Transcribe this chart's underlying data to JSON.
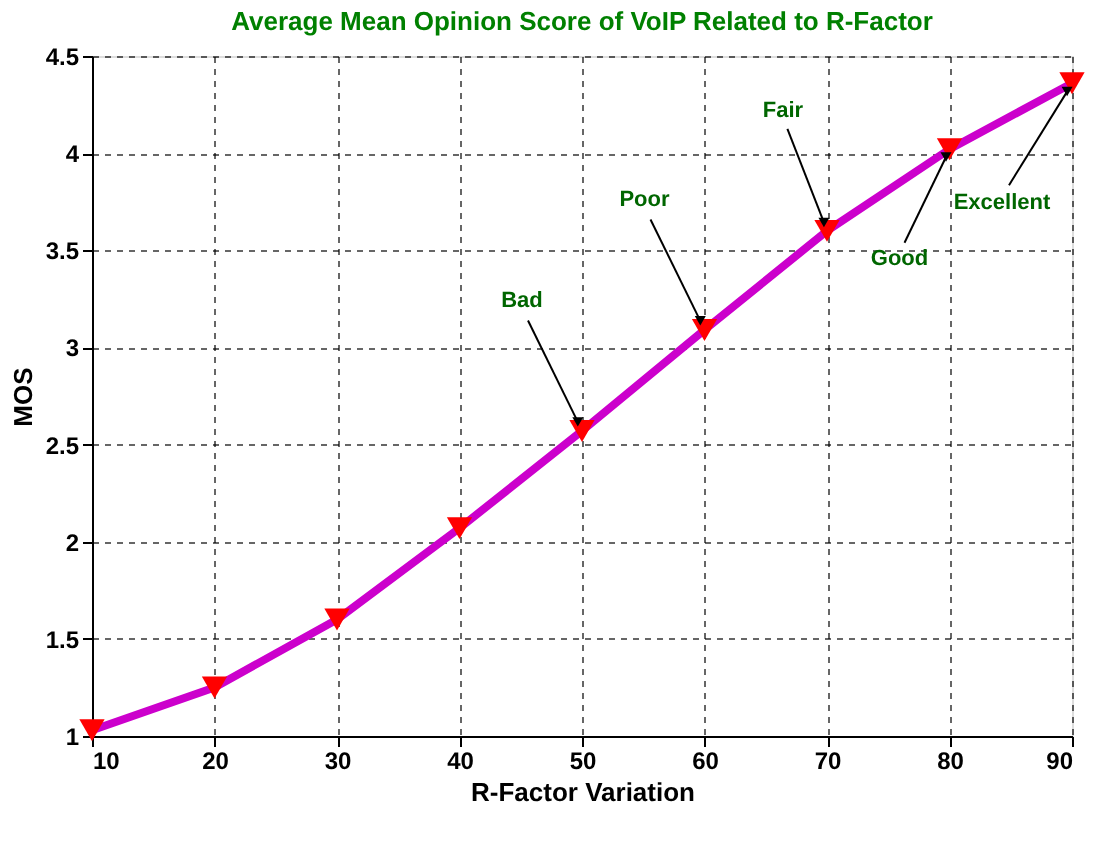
{
  "chart_data": {
    "type": "line",
    "title": "Average Mean Opinion Score of VoIP Related to R-Factor",
    "xlabel": "R-Factor Variation",
    "ylabel": "MOS",
    "x": [
      10,
      20,
      30,
      40,
      50,
      60,
      70,
      80,
      90
    ],
    "series": [
      {
        "color": "#cc00cc",
        "values": [
          1.03,
          1.25,
          1.6,
          2.07,
          2.57,
          3.09,
          3.6,
          4.02,
          4.36
        ]
      }
    ],
    "xlim": [
      10,
      90
    ],
    "xticks": [
      10,
      20,
      30,
      40,
      50,
      60,
      70,
      80,
      90
    ],
    "ylim": [
      1,
      4.5
    ],
    "yticks": [
      1,
      1.5,
      2,
      2.5,
      3,
      3.5,
      4,
      4.5
    ],
    "grid": true,
    "marker": "triangle",
    "line_style": "solid",
    "annotations": [
      {
        "text": "Bad",
        "x": 50,
        "y": 2.57
      },
      {
        "text": "Poor",
        "x": 60,
        "y": 3.09
      },
      {
        "text": "Fair",
        "x": 70,
        "y": 3.6
      },
      {
        "text": "Good",
        "x": 80,
        "y": 4.02
      },
      {
        "text": "Excellent",
        "x": 90,
        "y": 4.36
      }
    ]
  }
}
